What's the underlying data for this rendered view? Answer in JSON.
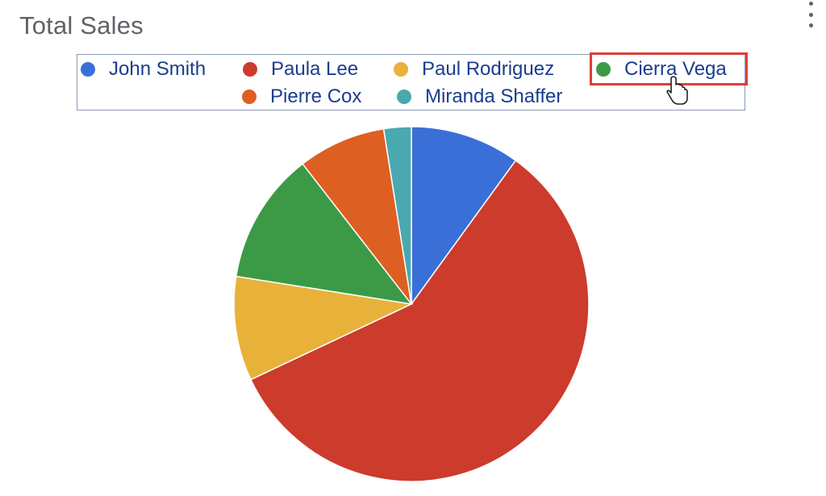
{
  "card": {
    "title": "Total Sales",
    "menu_icon": "more-vert-icon"
  },
  "legend": {
    "items": [
      {
        "label": "John Smith",
        "color": "#3b6fd8"
      },
      {
        "label": "Paula Lee",
        "color": "#cc3b2c"
      },
      {
        "label": "Paul Rodriguez",
        "color": "#e8b23a"
      },
      {
        "label": "Cierra Vega",
        "color": "#3c9a47"
      },
      {
        "label": "Pierre Cox",
        "color": "#de5f22"
      },
      {
        "label": "Miranda Shaffer",
        "color": "#4aa8b0"
      }
    ],
    "highlighted": "Cierra Vega",
    "highlight_color": "#d9403a"
  },
  "chart_data": {
    "type": "pie",
    "title": "Total Sales",
    "legend_position": "top",
    "start_angle_deg": 0,
    "direction": "clockwise",
    "slices": [
      {
        "label": "John Smith",
        "value": 10,
        "color": "#3b6fd8"
      },
      {
        "label": "Paula Lee",
        "value": 58,
        "color": "#cc3b2c"
      },
      {
        "label": "Paul Rodriguez",
        "value": 9.5,
        "color": "#e8b23a"
      },
      {
        "label": "Cierra Vega",
        "value": 12,
        "color": "#3c9a47"
      },
      {
        "label": "Pierre Cox",
        "value": 8,
        "color": "#de5f22"
      },
      {
        "label": "Miranda Shaffer",
        "value": 2.5,
        "color": "#4aa8b0"
      }
    ]
  }
}
